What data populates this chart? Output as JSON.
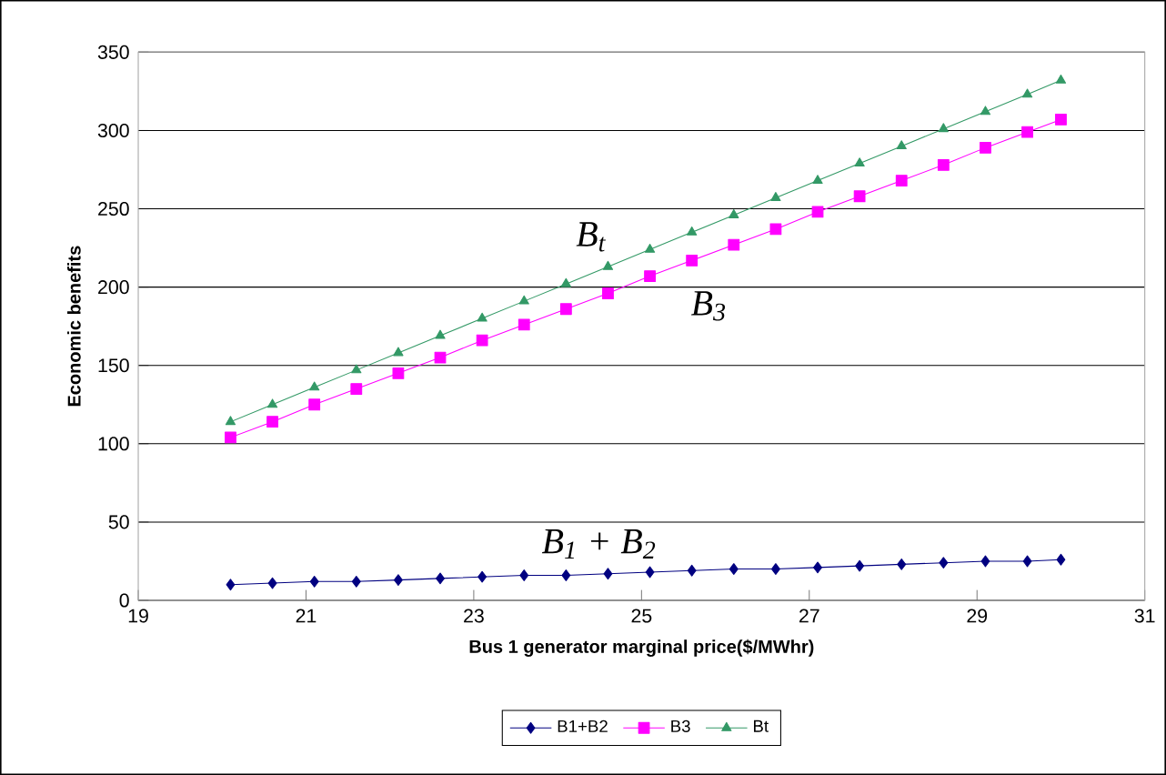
{
  "chart_data": {
    "type": "line",
    "xlabel": "Bus 1 generator marginal price($/MWhr)",
    "ylabel": "Economic benefits",
    "x": [
      20.1,
      20.6,
      21.1,
      21.6,
      22.1,
      22.6,
      23.1,
      23.6,
      24.1,
      24.6,
      25.1,
      25.6,
      26.1,
      26.6,
      27.1,
      27.6,
      28.1,
      28.6,
      29.1,
      29.6,
      30.0
    ],
    "series": [
      {
        "name": "B1+B2",
        "color": "#000080",
        "marker": "diamond",
        "values": [
          10,
          11,
          12,
          12,
          13,
          14,
          15,
          16,
          16,
          17,
          18,
          19,
          20,
          20,
          21,
          22,
          23,
          24,
          25,
          25,
          26
        ]
      },
      {
        "name": "B3",
        "color": "#ff00ff",
        "marker": "square",
        "values": [
          104,
          114,
          125,
          135,
          145,
          155,
          166,
          176,
          186,
          196,
          207,
          217,
          227,
          237,
          248,
          258,
          268,
          278,
          289,
          299,
          307
        ]
      },
      {
        "name": "Bt",
        "color": "#339966",
        "marker": "triangle",
        "values": [
          114,
          125,
          136,
          147,
          158,
          169,
          180,
          191,
          202,
          213,
          224,
          235,
          246,
          257,
          268,
          279,
          290,
          301,
          312,
          323,
          332
        ]
      }
    ],
    "xlim": [
      19,
      31
    ],
    "xticks": [
      19,
      21,
      23,
      25,
      27,
      29,
      31
    ],
    "ylim": [
      0,
      350
    ],
    "yticks": [
      0,
      50,
      100,
      150,
      200,
      250,
      300,
      350
    ],
    "grid": "y",
    "legend": "bottom",
    "line_style": "solid",
    "annotations": [
      "B$_{t}$",
      "B$_{3}$",
      "B$_{1}$ + B$_{2}$"
    ]
  }
}
